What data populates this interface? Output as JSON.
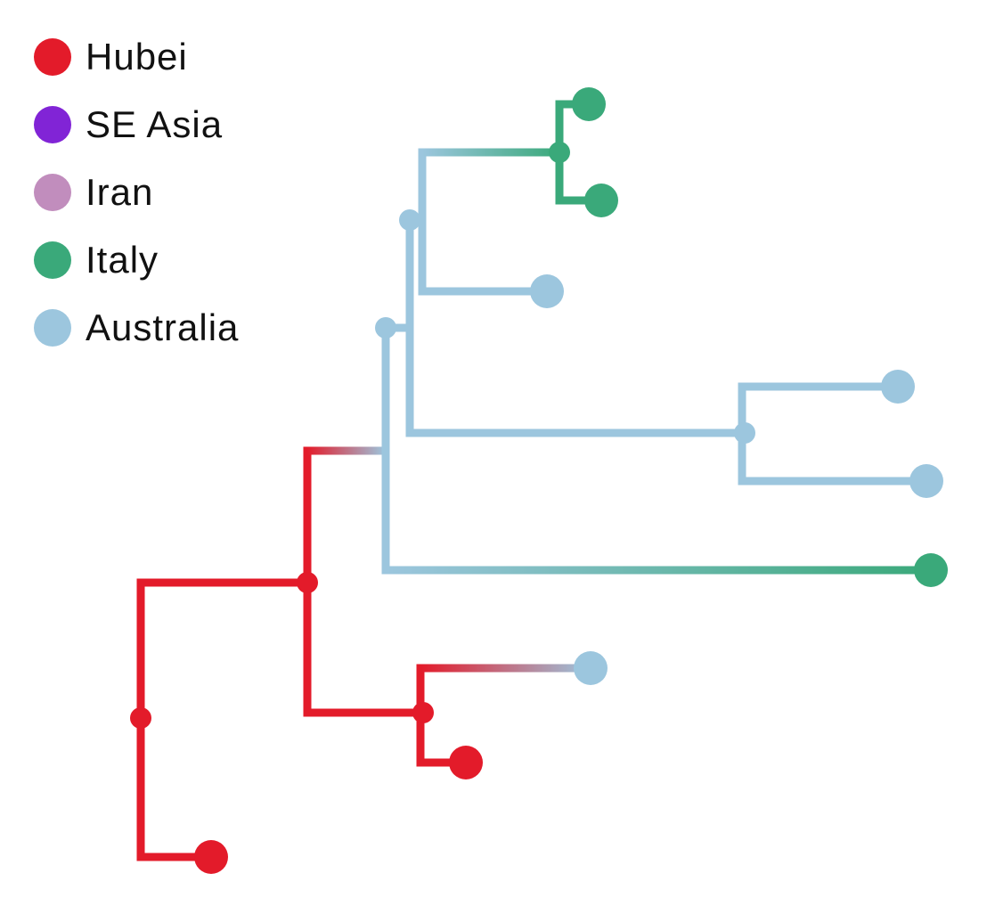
{
  "legend": {
    "items": [
      {
        "label": "Hubei",
        "color": "#e31b2a"
      },
      {
        "label": "SE Asia",
        "color": "#8124d6"
      },
      {
        "label": "Iran",
        "color": "#c18dbd"
      },
      {
        "label": "Italy",
        "color": "#3aa97a"
      },
      {
        "label": "Australia",
        "color": "#9cc6de"
      }
    ]
  },
  "tree": {
    "nodes": [
      {
        "id": "root",
        "region": "Hubei",
        "children": [
          "clade-a",
          "hubei-tip-1"
        ]
      },
      {
        "id": "clade-a",
        "region": "Hubei",
        "children": [
          "aus-intro",
          "hubei-sub"
        ]
      },
      {
        "id": "hubei-tip-1",
        "region": "Hubei",
        "tip": true
      },
      {
        "id": "aus-intro",
        "region": "Australia",
        "children": [
          "aus-clade-1",
          "italy-tip-3"
        ]
      },
      {
        "id": "aus-clade-1",
        "region": "Australia",
        "children": [
          "aus-clade-2",
          "aus-clade-3"
        ]
      },
      {
        "id": "aus-clade-2",
        "region": "Australia",
        "children": [
          "italy-clade",
          "aus-tip-1"
        ]
      },
      {
        "id": "italy-clade",
        "region": "Italy",
        "children": [
          "italy-tip-1",
          "italy-tip-2"
        ]
      },
      {
        "id": "italy-tip-1",
        "region": "Italy",
        "tip": true
      },
      {
        "id": "italy-tip-2",
        "region": "Italy",
        "tip": true
      },
      {
        "id": "aus-tip-1",
        "region": "Australia",
        "tip": true
      },
      {
        "id": "aus-clade-3",
        "region": "Australia",
        "children": [
          "aus-tip-2",
          "aus-tip-3"
        ]
      },
      {
        "id": "aus-tip-2",
        "region": "Australia",
        "tip": true
      },
      {
        "id": "aus-tip-3",
        "region": "Australia",
        "tip": true
      },
      {
        "id": "italy-tip-3",
        "region": "Italy",
        "tip": true
      },
      {
        "id": "hubei-sub",
        "region": "Hubei",
        "children": [
          "aus-tip-4",
          "hubei-tip-2"
        ]
      },
      {
        "id": "aus-tip-4",
        "region": "Australia",
        "tip": true
      },
      {
        "id": "hubei-tip-2",
        "region": "Hubei",
        "tip": true
      }
    ]
  }
}
